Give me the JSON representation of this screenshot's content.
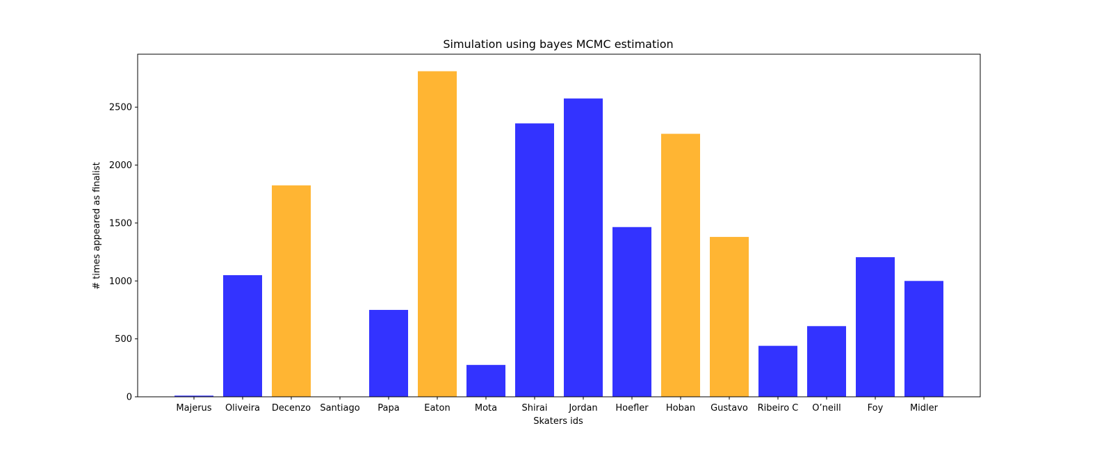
{
  "chart_data": {
    "type": "bar",
    "title": "Simulation using bayes MCMC estimation",
    "xlabel": "Skaters ids",
    "ylabel": "# times appeared as finalist",
    "categories": [
      "Majerus",
      "Oliveira",
      "Decenzo",
      "Santiago",
      "Papa",
      "Eaton",
      "Mota",
      "Shirai",
      "Jordan",
      "Hoefler",
      "Hoban",
      "Gustavo",
      "Ribeiro C",
      "O’neill",
      "Foy",
      "Midler"
    ],
    "values": [
      10,
      1050,
      1825,
      0,
      750,
      2810,
      275,
      2360,
      2575,
      1465,
      2270,
      1380,
      440,
      610,
      1205,
      1000
    ],
    "highlight": [
      false,
      false,
      true,
      false,
      false,
      true,
      false,
      false,
      false,
      false,
      true,
      true,
      false,
      false,
      false,
      false
    ],
    "ylim": [
      0,
      2957
    ],
    "yticks": [
      0,
      500,
      1000,
      1500,
      2000,
      2500
    ],
    "grid": false,
    "colors": {
      "default": "#3333ff",
      "highlight": "#ffb533"
    }
  }
}
